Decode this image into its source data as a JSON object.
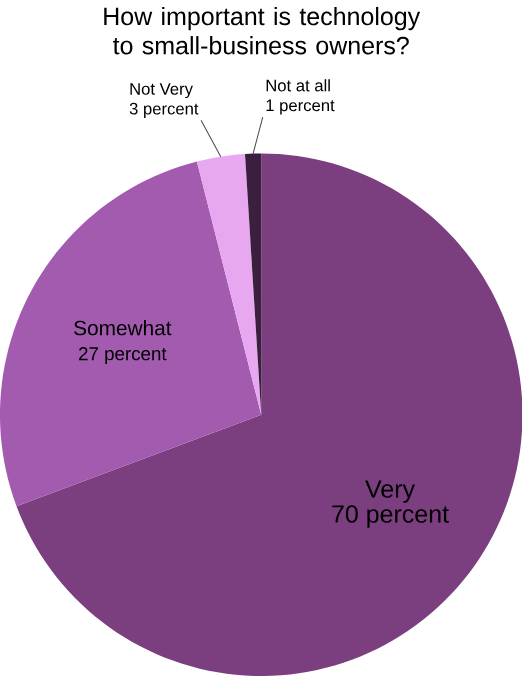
{
  "chart_data": {
    "type": "pie",
    "title": "How important is technology to small-business owners?",
    "categories": [
      "Very",
      "Somewhat",
      "Not Very",
      "Not at all"
    ],
    "values": [
      70,
      27,
      3,
      1
    ],
    "value_labels": [
      "70 percent",
      "27 percent",
      "3 percent",
      "1 percent"
    ],
    "colors": [
      "#7b3f7f",
      "#a35bb0",
      "#e8a8f0",
      "#3b1f3e"
    ]
  }
}
